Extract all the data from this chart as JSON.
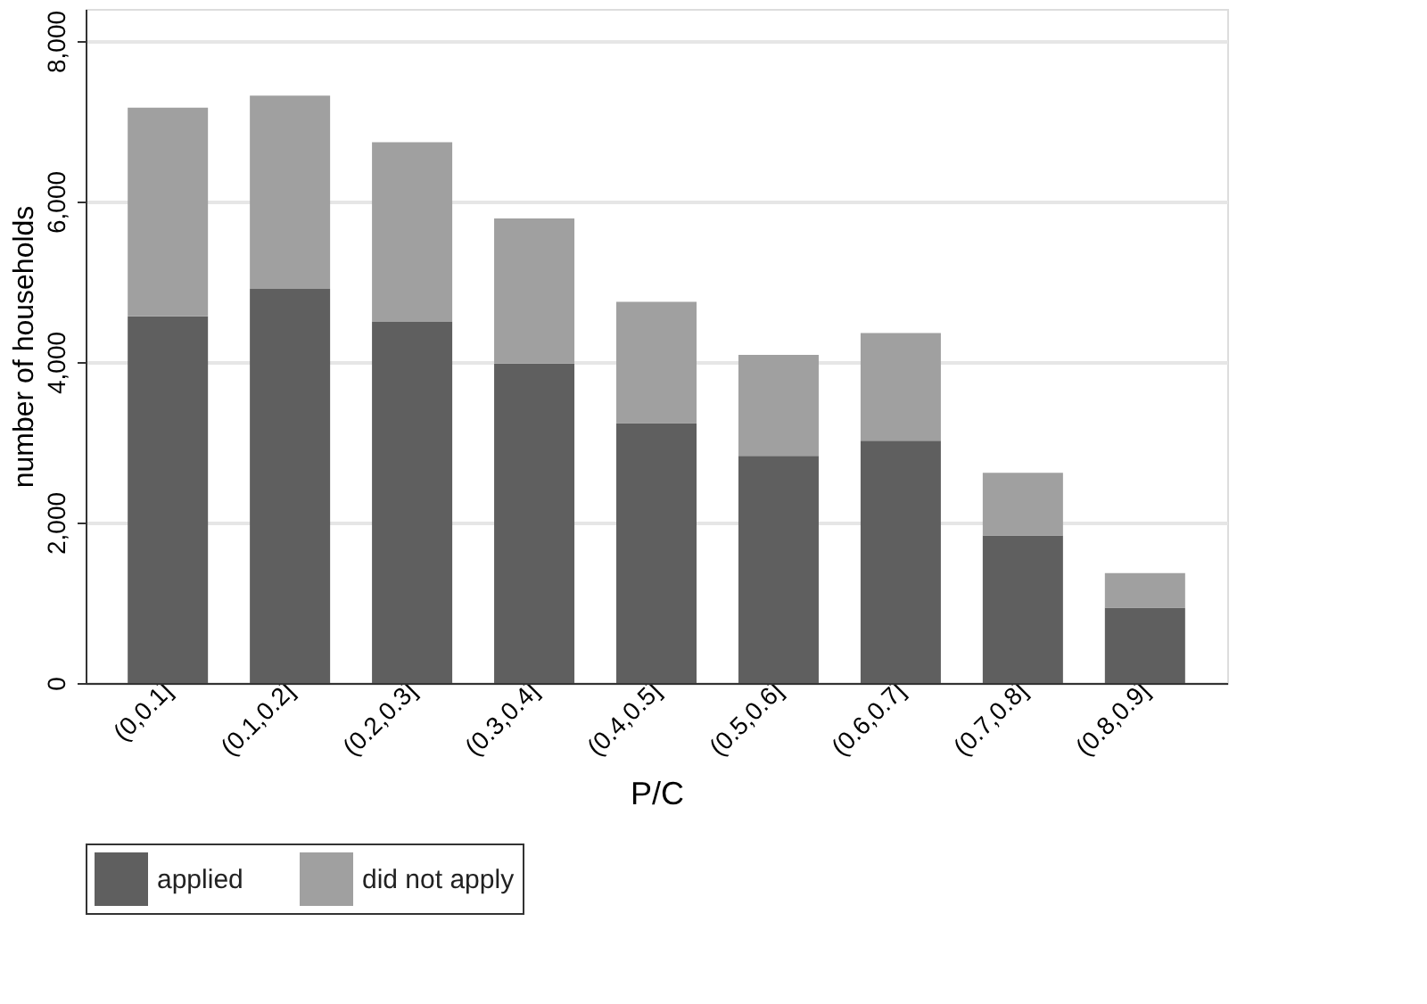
{
  "chart_data": {
    "type": "bar",
    "stacked": true,
    "xlabel": "P/C",
    "ylabel": "number of households",
    "categories": [
      "(0,0.1]",
      "(0.1,0.2]",
      "(0.2,0.3]",
      "(0.3,0.4]",
      "(0.4,0.5]",
      "(0.5,0.6]",
      "(0.6,0.7]",
      "(0.7,0.8]",
      "(0.8,0.9]"
    ],
    "series": [
      {
        "name": "applied",
        "color": "#5f5f5f",
        "values": [
          4570,
          4910,
          4500,
          3980,
          3240,
          2830,
          3020,
          1840,
          940
        ]
      },
      {
        "name": "did not apply",
        "color": "#a0a0a0",
        "values": [
          2600,
          2410,
          2240,
          1810,
          1510,
          1260,
          1340,
          780,
          430
        ]
      }
    ],
    "ylim": [
      0,
      8400
    ],
    "yticks": [
      {
        "value": 0,
        "label": "0"
      },
      {
        "value": 2000,
        "label": "2,000"
      },
      {
        "value": 4000,
        "label": "4,000"
      },
      {
        "value": 6000,
        "label": "6,000"
      },
      {
        "value": 8000,
        "label": "8,000"
      }
    ],
    "grid": "y",
    "legend": "bottom"
  }
}
